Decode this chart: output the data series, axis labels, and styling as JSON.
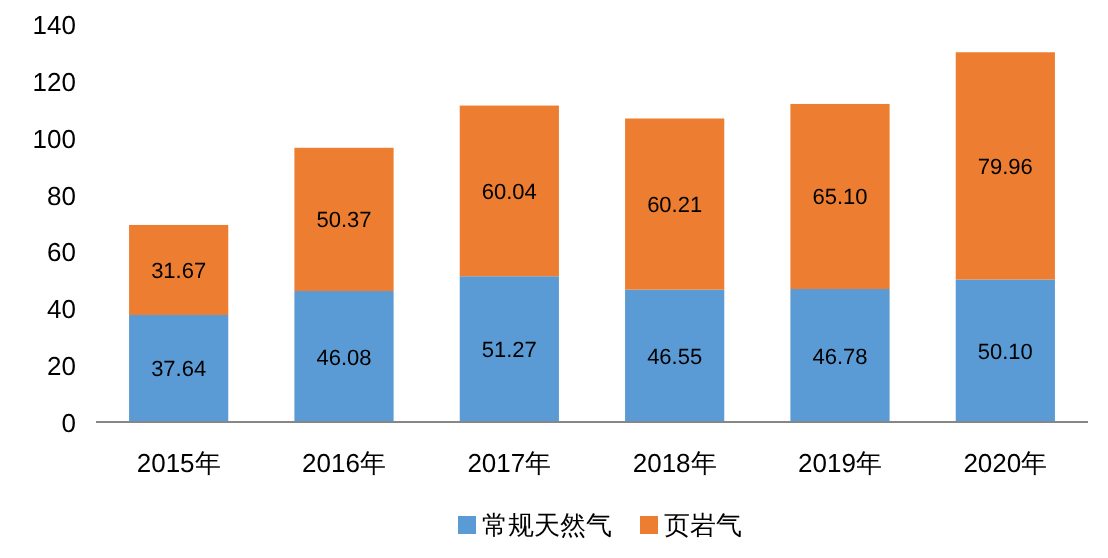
{
  "chart_data": {
    "type": "bar",
    "stacked": true,
    "categories": [
      "2015年",
      "2016年",
      "2017年",
      "2018年",
      "2019年",
      "2020年"
    ],
    "series": [
      {
        "name": "常规天然气",
        "color": "#5b9bd5",
        "values": [
          37.64,
          46.08,
          51.27,
          46.55,
          46.78,
          50.1
        ],
        "value_labels": [
          "37.64",
          "46.08",
          "51.27",
          "46.55",
          "46.78",
          "50.10"
        ]
      },
      {
        "name": "页岩气",
        "color": "#ed7d31",
        "values": [
          31.67,
          50.37,
          60.04,
          60.21,
          65.1,
          79.96
        ],
        "value_labels": [
          "31.67",
          "50.37",
          "60.04",
          "60.21",
          "65.10",
          "79.96"
        ]
      }
    ],
    "ylim": [
      0,
      140
    ],
    "yticks": [
      0,
      20,
      40,
      60,
      80,
      100,
      120,
      140
    ],
    "legend": "bottom"
  }
}
